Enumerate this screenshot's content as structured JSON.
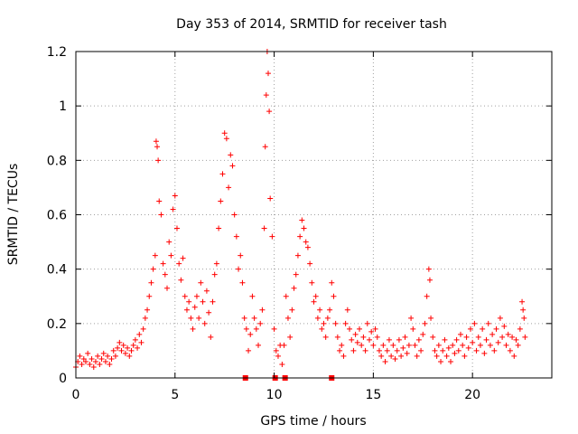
{
  "chart_data": {
    "type": "scatter",
    "title": "Day 353 of 2014, SRMTID for receiver tash",
    "xlabel": "GPS time / hours",
    "ylabel": "SRMTID / TECUs",
    "xlim": [
      0,
      24
    ],
    "ylim": [
      0,
      1.2
    ],
    "xticks": [
      0,
      5,
      10,
      15,
      20
    ],
    "yticks": [
      0,
      0.2,
      0.4,
      0.6,
      0.8,
      1,
      1.2
    ],
    "x_tick_labels": [
      "0",
      "5",
      "10",
      "15",
      "20"
    ],
    "y_tick_labels": [
      "0",
      "0.2",
      "0.4",
      "0.6",
      "0.8",
      "1",
      "1.2"
    ],
    "grid": true,
    "marker": "+",
    "series": [
      {
        "name": "SRMTID",
        "color": "#ff0000",
        "points": [
          [
            0.0,
            0.04
          ],
          [
            0.1,
            0.06
          ],
          [
            0.2,
            0.08
          ],
          [
            0.3,
            0.05
          ],
          [
            0.4,
            0.07
          ],
          [
            0.5,
            0.06
          ],
          [
            0.6,
            0.09
          ],
          [
            0.7,
            0.05
          ],
          [
            0.8,
            0.07
          ],
          [
            0.9,
            0.04
          ],
          [
            1.0,
            0.06
          ],
          [
            1.1,
            0.08
          ],
          [
            1.2,
            0.05
          ],
          [
            1.3,
            0.07
          ],
          [
            1.4,
            0.09
          ],
          [
            1.5,
            0.06
          ],
          [
            1.6,
            0.08
          ],
          [
            1.7,
            0.05
          ],
          [
            1.8,
            0.07
          ],
          [
            1.9,
            0.1
          ],
          [
            2.0,
            0.08
          ],
          [
            2.1,
            0.11
          ],
          [
            2.2,
            0.13
          ],
          [
            2.3,
            0.1
          ],
          [
            2.4,
            0.12
          ],
          [
            2.5,
            0.09
          ],
          [
            2.6,
            0.11
          ],
          [
            2.7,
            0.08
          ],
          [
            2.8,
            0.1
          ],
          [
            2.9,
            0.12
          ],
          [
            3.0,
            0.14
          ],
          [
            3.1,
            0.11
          ],
          [
            3.2,
            0.16
          ],
          [
            3.3,
            0.13
          ],
          [
            3.4,
            0.18
          ],
          [
            3.5,
            0.22
          ],
          [
            3.6,
            0.25
          ],
          [
            3.7,
            0.3
          ],
          [
            3.8,
            0.35
          ],
          [
            3.9,
            0.4
          ],
          [
            4.0,
            0.45
          ],
          [
            4.05,
            0.87
          ],
          [
            4.1,
            0.85
          ],
          [
            4.15,
            0.8
          ],
          [
            4.2,
            0.65
          ],
          [
            4.3,
            0.6
          ],
          [
            4.4,
            0.42
          ],
          [
            4.5,
            0.38
          ],
          [
            4.6,
            0.33
          ],
          [
            4.7,
            0.5
          ],
          [
            4.8,
            0.45
          ],
          [
            4.9,
            0.62
          ],
          [
            5.0,
            0.67
          ],
          [
            5.1,
            0.55
          ],
          [
            5.2,
            0.42
          ],
          [
            5.3,
            0.36
          ],
          [
            5.4,
            0.44
          ],
          [
            5.5,
            0.3
          ],
          [
            5.6,
            0.25
          ],
          [
            5.7,
            0.28
          ],
          [
            5.8,
            0.22
          ],
          [
            5.9,
            0.18
          ],
          [
            6.0,
            0.26
          ],
          [
            6.1,
            0.3
          ],
          [
            6.2,
            0.22
          ],
          [
            6.3,
            0.35
          ],
          [
            6.4,
            0.28
          ],
          [
            6.5,
            0.2
          ],
          [
            6.6,
            0.32
          ],
          [
            6.7,
            0.24
          ],
          [
            6.8,
            0.15
          ],
          [
            6.9,
            0.28
          ],
          [
            7.0,
            0.38
          ],
          [
            7.1,
            0.42
          ],
          [
            7.2,
            0.55
          ],
          [
            7.3,
            0.65
          ],
          [
            7.4,
            0.75
          ],
          [
            7.5,
            0.9
          ],
          [
            7.6,
            0.88
          ],
          [
            7.7,
            0.7
          ],
          [
            7.8,
            0.82
          ],
          [
            7.9,
            0.78
          ],
          [
            8.0,
            0.6
          ],
          [
            8.1,
            0.52
          ],
          [
            8.2,
            0.4
          ],
          [
            8.3,
            0.45
          ],
          [
            8.4,
            0.35
          ],
          [
            8.5,
            0.22
          ],
          [
            8.6,
            0.18
          ],
          [
            8.7,
            0.1
          ],
          [
            8.8,
            0.16
          ],
          [
            8.9,
            0.3
          ],
          [
            9.0,
            0.22
          ],
          [
            9.1,
            0.18
          ],
          [
            9.2,
            0.12
          ],
          [
            9.3,
            0.2
          ],
          [
            9.4,
            0.25
          ],
          [
            9.5,
            0.55
          ],
          [
            9.55,
            0.85
          ],
          [
            9.6,
            1.04
          ],
          [
            9.65,
            1.2
          ],
          [
            9.7,
            1.12
          ],
          [
            9.75,
            0.98
          ],
          [
            9.8,
            0.66
          ],
          [
            9.9,
            0.52
          ],
          [
            10.0,
            0.18
          ],
          [
            10.1,
            0.1
          ],
          [
            10.2,
            0.08
          ],
          [
            10.3,
            0.12
          ],
          [
            10.4,
            0.05
          ],
          [
            10.5,
            0.12
          ],
          [
            10.6,
            0.3
          ],
          [
            10.7,
            0.22
          ],
          [
            10.8,
            0.15
          ],
          [
            10.9,
            0.25
          ],
          [
            11.0,
            0.33
          ],
          [
            11.1,
            0.38
          ],
          [
            11.2,
            0.45
          ],
          [
            11.3,
            0.52
          ],
          [
            11.4,
            0.58
          ],
          [
            11.5,
            0.55
          ],
          [
            11.6,
            0.5
          ],
          [
            11.7,
            0.48
          ],
          [
            11.8,
            0.42
          ],
          [
            11.9,
            0.35
          ],
          [
            12.0,
            0.28
          ],
          [
            12.1,
            0.3
          ],
          [
            12.2,
            0.22
          ],
          [
            12.3,
            0.25
          ],
          [
            12.4,
            0.18
          ],
          [
            12.5,
            0.2
          ],
          [
            12.6,
            0.15
          ],
          [
            12.7,
            0.22
          ],
          [
            12.8,
            0.25
          ],
          [
            12.9,
            0.35
          ],
          [
            13.0,
            0.3
          ],
          [
            13.1,
            0.2
          ],
          [
            13.2,
            0.15
          ],
          [
            13.3,
            0.1
          ],
          [
            13.4,
            0.12
          ],
          [
            13.5,
            0.08
          ],
          [
            13.6,
            0.2
          ],
          [
            13.7,
            0.25
          ],
          [
            13.8,
            0.18
          ],
          [
            13.9,
            0.14
          ],
          [
            14.0,
            0.1
          ],
          [
            14.1,
            0.16
          ],
          [
            14.2,
            0.13
          ],
          [
            14.3,
            0.18
          ],
          [
            14.4,
            0.12
          ],
          [
            14.5,
            0.15
          ],
          [
            14.6,
            0.1
          ],
          [
            14.7,
            0.2
          ],
          [
            14.8,
            0.14
          ],
          [
            14.9,
            0.17
          ],
          [
            15.0,
            0.12
          ],
          [
            15.1,
            0.18
          ],
          [
            15.2,
            0.15
          ],
          [
            15.3,
            0.1
          ],
          [
            15.4,
            0.08
          ],
          [
            15.5,
            0.12
          ],
          [
            15.6,
            0.06
          ],
          [
            15.7,
            0.1
          ],
          [
            15.8,
            0.14
          ],
          [
            15.9,
            0.08
          ],
          [
            16.0,
            0.12
          ],
          [
            16.1,
            0.07
          ],
          [
            16.2,
            0.1
          ],
          [
            16.3,
            0.14
          ],
          [
            16.4,
            0.08
          ],
          [
            16.5,
            0.11
          ],
          [
            16.6,
            0.15
          ],
          [
            16.7,
            0.09
          ],
          [
            16.8,
            0.12
          ],
          [
            16.9,
            0.22
          ],
          [
            17.0,
            0.18
          ],
          [
            17.1,
            0.12
          ],
          [
            17.2,
            0.08
          ],
          [
            17.3,
            0.14
          ],
          [
            17.4,
            0.1
          ],
          [
            17.5,
            0.16
          ],
          [
            17.6,
            0.2
          ],
          [
            17.7,
            0.3
          ],
          [
            17.8,
            0.4
          ],
          [
            17.85,
            0.36
          ],
          [
            17.9,
            0.22
          ],
          [
            18.0,
            0.15
          ],
          [
            18.1,
            0.1
          ],
          [
            18.2,
            0.08
          ],
          [
            18.3,
            0.12
          ],
          [
            18.4,
            0.06
          ],
          [
            18.5,
            0.1
          ],
          [
            18.6,
            0.14
          ],
          [
            18.7,
            0.08
          ],
          [
            18.8,
            0.11
          ],
          [
            18.9,
            0.06
          ],
          [
            19.0,
            0.12
          ],
          [
            19.1,
            0.09
          ],
          [
            19.2,
            0.14
          ],
          [
            19.3,
            0.1
          ],
          [
            19.4,
            0.16
          ],
          [
            19.5,
            0.12
          ],
          [
            19.6,
            0.08
          ],
          [
            19.7,
            0.15
          ],
          [
            19.8,
            0.11
          ],
          [
            19.9,
            0.18
          ],
          [
            20.0,
            0.13
          ],
          [
            20.1,
            0.2
          ],
          [
            20.2,
            0.1
          ],
          [
            20.3,
            0.15
          ],
          [
            20.4,
            0.12
          ],
          [
            20.5,
            0.18
          ],
          [
            20.6,
            0.09
          ],
          [
            20.7,
            0.14
          ],
          [
            20.8,
            0.2
          ],
          [
            20.9,
            0.12
          ],
          [
            21.0,
            0.16
          ],
          [
            21.1,
            0.1
          ],
          [
            21.2,
            0.18
          ],
          [
            21.3,
            0.13
          ],
          [
            21.4,
            0.22
          ],
          [
            21.5,
            0.15
          ],
          [
            21.6,
            0.19
          ],
          [
            21.7,
            0.12
          ],
          [
            21.8,
            0.16
          ],
          [
            21.9,
            0.1
          ],
          [
            22.0,
            0.15
          ],
          [
            22.1,
            0.08
          ],
          [
            22.2,
            0.14
          ],
          [
            22.3,
            0.12
          ],
          [
            22.4,
            0.18
          ],
          [
            22.5,
            0.28
          ],
          [
            22.55,
            0.25
          ],
          [
            22.6,
            0.22
          ],
          [
            22.65,
            0.15
          ]
        ]
      }
    ],
    "gap_markers": [
      8.55,
      10.05,
      10.55,
      12.9
    ]
  }
}
